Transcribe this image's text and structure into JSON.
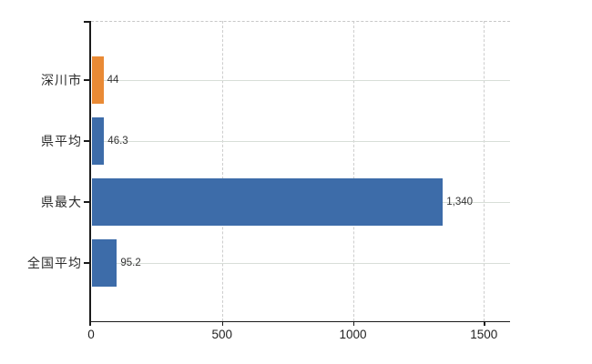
{
  "chart_data": {
    "type": "bar",
    "orientation": "horizontal",
    "title": "",
    "xlabel": "",
    "ylabel": "",
    "categories": [
      "深川市",
      "県平均",
      "県最大",
      "全国平均"
    ],
    "values": [
      44,
      46.3,
      1340,
      95.2
    ],
    "value_labels": [
      "44",
      "46.3",
      "1,340",
      "95.2"
    ],
    "bar_colors": [
      "#e98a35",
      "#3d6ca9",
      "#3d6ca9",
      "#3d6ca9"
    ],
    "xlim": [
      0,
      1600
    ],
    "x_ticks": [
      0,
      500,
      1000,
      1500
    ],
    "x_tick_labels": [
      "0",
      "500",
      "1000",
      "1500"
    ],
    "legend": "none",
    "grid": {
      "vertical_gridlines": "dashed",
      "horizontal_category_lines": "solid",
      "plot_top_border": "dashed",
      "vertical_gridline_color": "#cdcdcd",
      "horizontal_gridline_color": "#d8ded8",
      "top_border_color": "#c8c8c8"
    },
    "colors": {
      "highlight_bar": "#e98a35",
      "default_bar": "#3d6ca9",
      "axis": "#1a1a1a",
      "category_label_text": "#2b2b2b",
      "value_label_text": "#333333",
      "tick_label_text": "#222222",
      "background": "#ffffff"
    }
  }
}
